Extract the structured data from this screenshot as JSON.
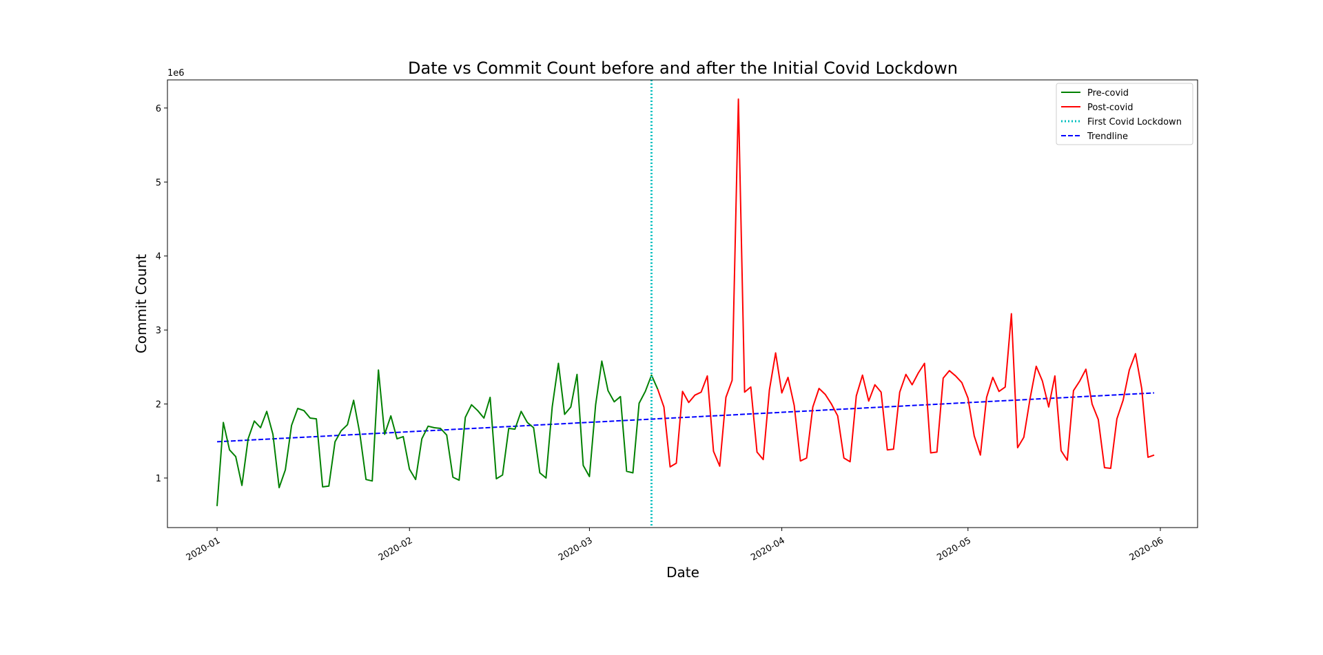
{
  "chart_data": {
    "type": "line",
    "title": "Date vs Commit Count before and after the Initial Covid Lockdown",
    "xlabel": "Date",
    "ylabel": "Commit Count",
    "y_offset_label": "1e6",
    "y_unit": 1000000,
    "x_range": [
      "2019-12-24",
      "2020-06-07"
    ],
    "ylim": [
      330000,
      6380000
    ],
    "x_ticks": [
      "2020-01-01",
      "2020-02-01",
      "2020-03-01",
      "2020-04-01",
      "2020-05-01",
      "2020-06-01"
    ],
    "x_tick_labels": [
      "2020-01",
      "2020-02",
      "2020-03",
      "2020-04",
      "2020-05",
      "2020-06"
    ],
    "y_ticks": [
      1000000,
      2000000,
      3000000,
      4000000,
      5000000,
      6000000
    ],
    "y_tick_labels": [
      "1",
      "2",
      "3",
      "4",
      "5",
      "6"
    ],
    "grid": false,
    "legend_position": "top-right",
    "lockdown_date": "2020-03-11",
    "series": [
      {
        "name": "Pre-covid",
        "color": "#008000",
        "style": "solid",
        "start_date": "2020-01-01",
        "values": [
          620000,
          1750000,
          1380000,
          1290000,
          900000,
          1530000,
          1770000,
          1680000,
          1900000,
          1590000,
          870000,
          1110000,
          1710000,
          1940000,
          1910000,
          1810000,
          1800000,
          880000,
          890000,
          1490000,
          1640000,
          1720000,
          2050000,
          1600000,
          980000,
          960000,
          2460000,
          1590000,
          1840000,
          1530000,
          1560000,
          1120000,
          980000,
          1530000,
          1700000,
          1680000,
          1670000,
          1580000,
          1010000,
          970000,
          1820000,
          1990000,
          1910000,
          1810000,
          2090000,
          990000,
          1040000,
          1670000,
          1660000,
          1900000,
          1750000,
          1680000,
          1070000,
          1000000,
          1960000,
          2550000,
          1860000,
          1960000,
          2400000,
          1170000,
          1020000,
          1990000,
          2580000,
          2180000,
          2030000,
          2100000,
          1090000,
          1070000,
          2010000,
          2170000,
          2390000,
          2200000
        ]
      },
      {
        "name": "Post-covid",
        "color": "#ff0000",
        "style": "solid",
        "start_date": "2020-03-12",
        "values": [
          2200000,
          1960000,
          1150000,
          1200000,
          2170000,
          2020000,
          2120000,
          2160000,
          2380000,
          1360000,
          1160000,
          2090000,
          2320000,
          6120000,
          2160000,
          2230000,
          1350000,
          1250000,
          2190000,
          2690000,
          2150000,
          2360000,
          1980000,
          1230000,
          1270000,
          1960000,
          2210000,
          2130000,
          2000000,
          1840000,
          1270000,
          1220000,
          2110000,
          2390000,
          2040000,
          2260000,
          2160000,
          1380000,
          1390000,
          2160000,
          2400000,
          2260000,
          2420000,
          2550000,
          1340000,
          1350000,
          2350000,
          2450000,
          2380000,
          2290000,
          2080000,
          1570000,
          1310000,
          2090000,
          2360000,
          2170000,
          2230000,
          3220000,
          1410000,
          1550000,
          2070000,
          2510000,
          2310000,
          1960000,
          2380000,
          1370000,
          1240000,
          2180000,
          2310000,
          2470000,
          2000000,
          1790000,
          1140000,
          1130000,
          1800000,
          2050000,
          2460000,
          2680000,
          2210000,
          1280000,
          1310000
        ]
      },
      {
        "name": "First Covid Lockdown",
        "color": "#00bfbf",
        "style": "dotted"
      },
      {
        "name": "Trendline",
        "color": "#0000ff",
        "style": "dashed",
        "x": [
          "2020-01-01",
          "2020-05-31"
        ],
        "y": [
          1490000,
          2150000
        ]
      }
    ]
  }
}
